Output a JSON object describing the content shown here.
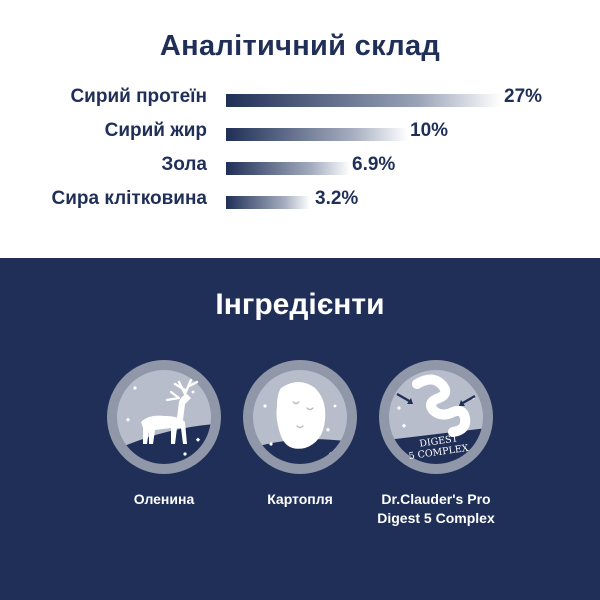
{
  "analysis": {
    "title": "Аналітичний склад",
    "rows": [
      {
        "label": "Сирий протеїн",
        "value": "27%",
        "fraction": 1.0
      },
      {
        "label": "Сирий жир",
        "value": "10%",
        "fraction": 0.66
      },
      {
        "label": "Зола",
        "value": "6.9%",
        "fraction": 0.45
      },
      {
        "label": "Сира клітковина",
        "value": "3.2%",
        "fraction": 0.3
      }
    ]
  },
  "ingredients": {
    "title": "Інгредієнти",
    "items": [
      {
        "label": "Оленина",
        "icon": "deer-icon"
      },
      {
        "label": "Картопля",
        "icon": "potato-icon"
      },
      {
        "label": "Dr.Clauder's Pro\nDigest 5 Complex",
        "icon": "digest-complex-icon",
        "badge": "DIGEST\n5 COMPLEX"
      }
    ]
  },
  "colors": {
    "navy": "#1f2f57",
    "bar_start": "#1f2f57",
    "bar_end": "#ffffff",
    "circle_outer": "#8f97a8",
    "circle_inner": "#b7bdca"
  }
}
